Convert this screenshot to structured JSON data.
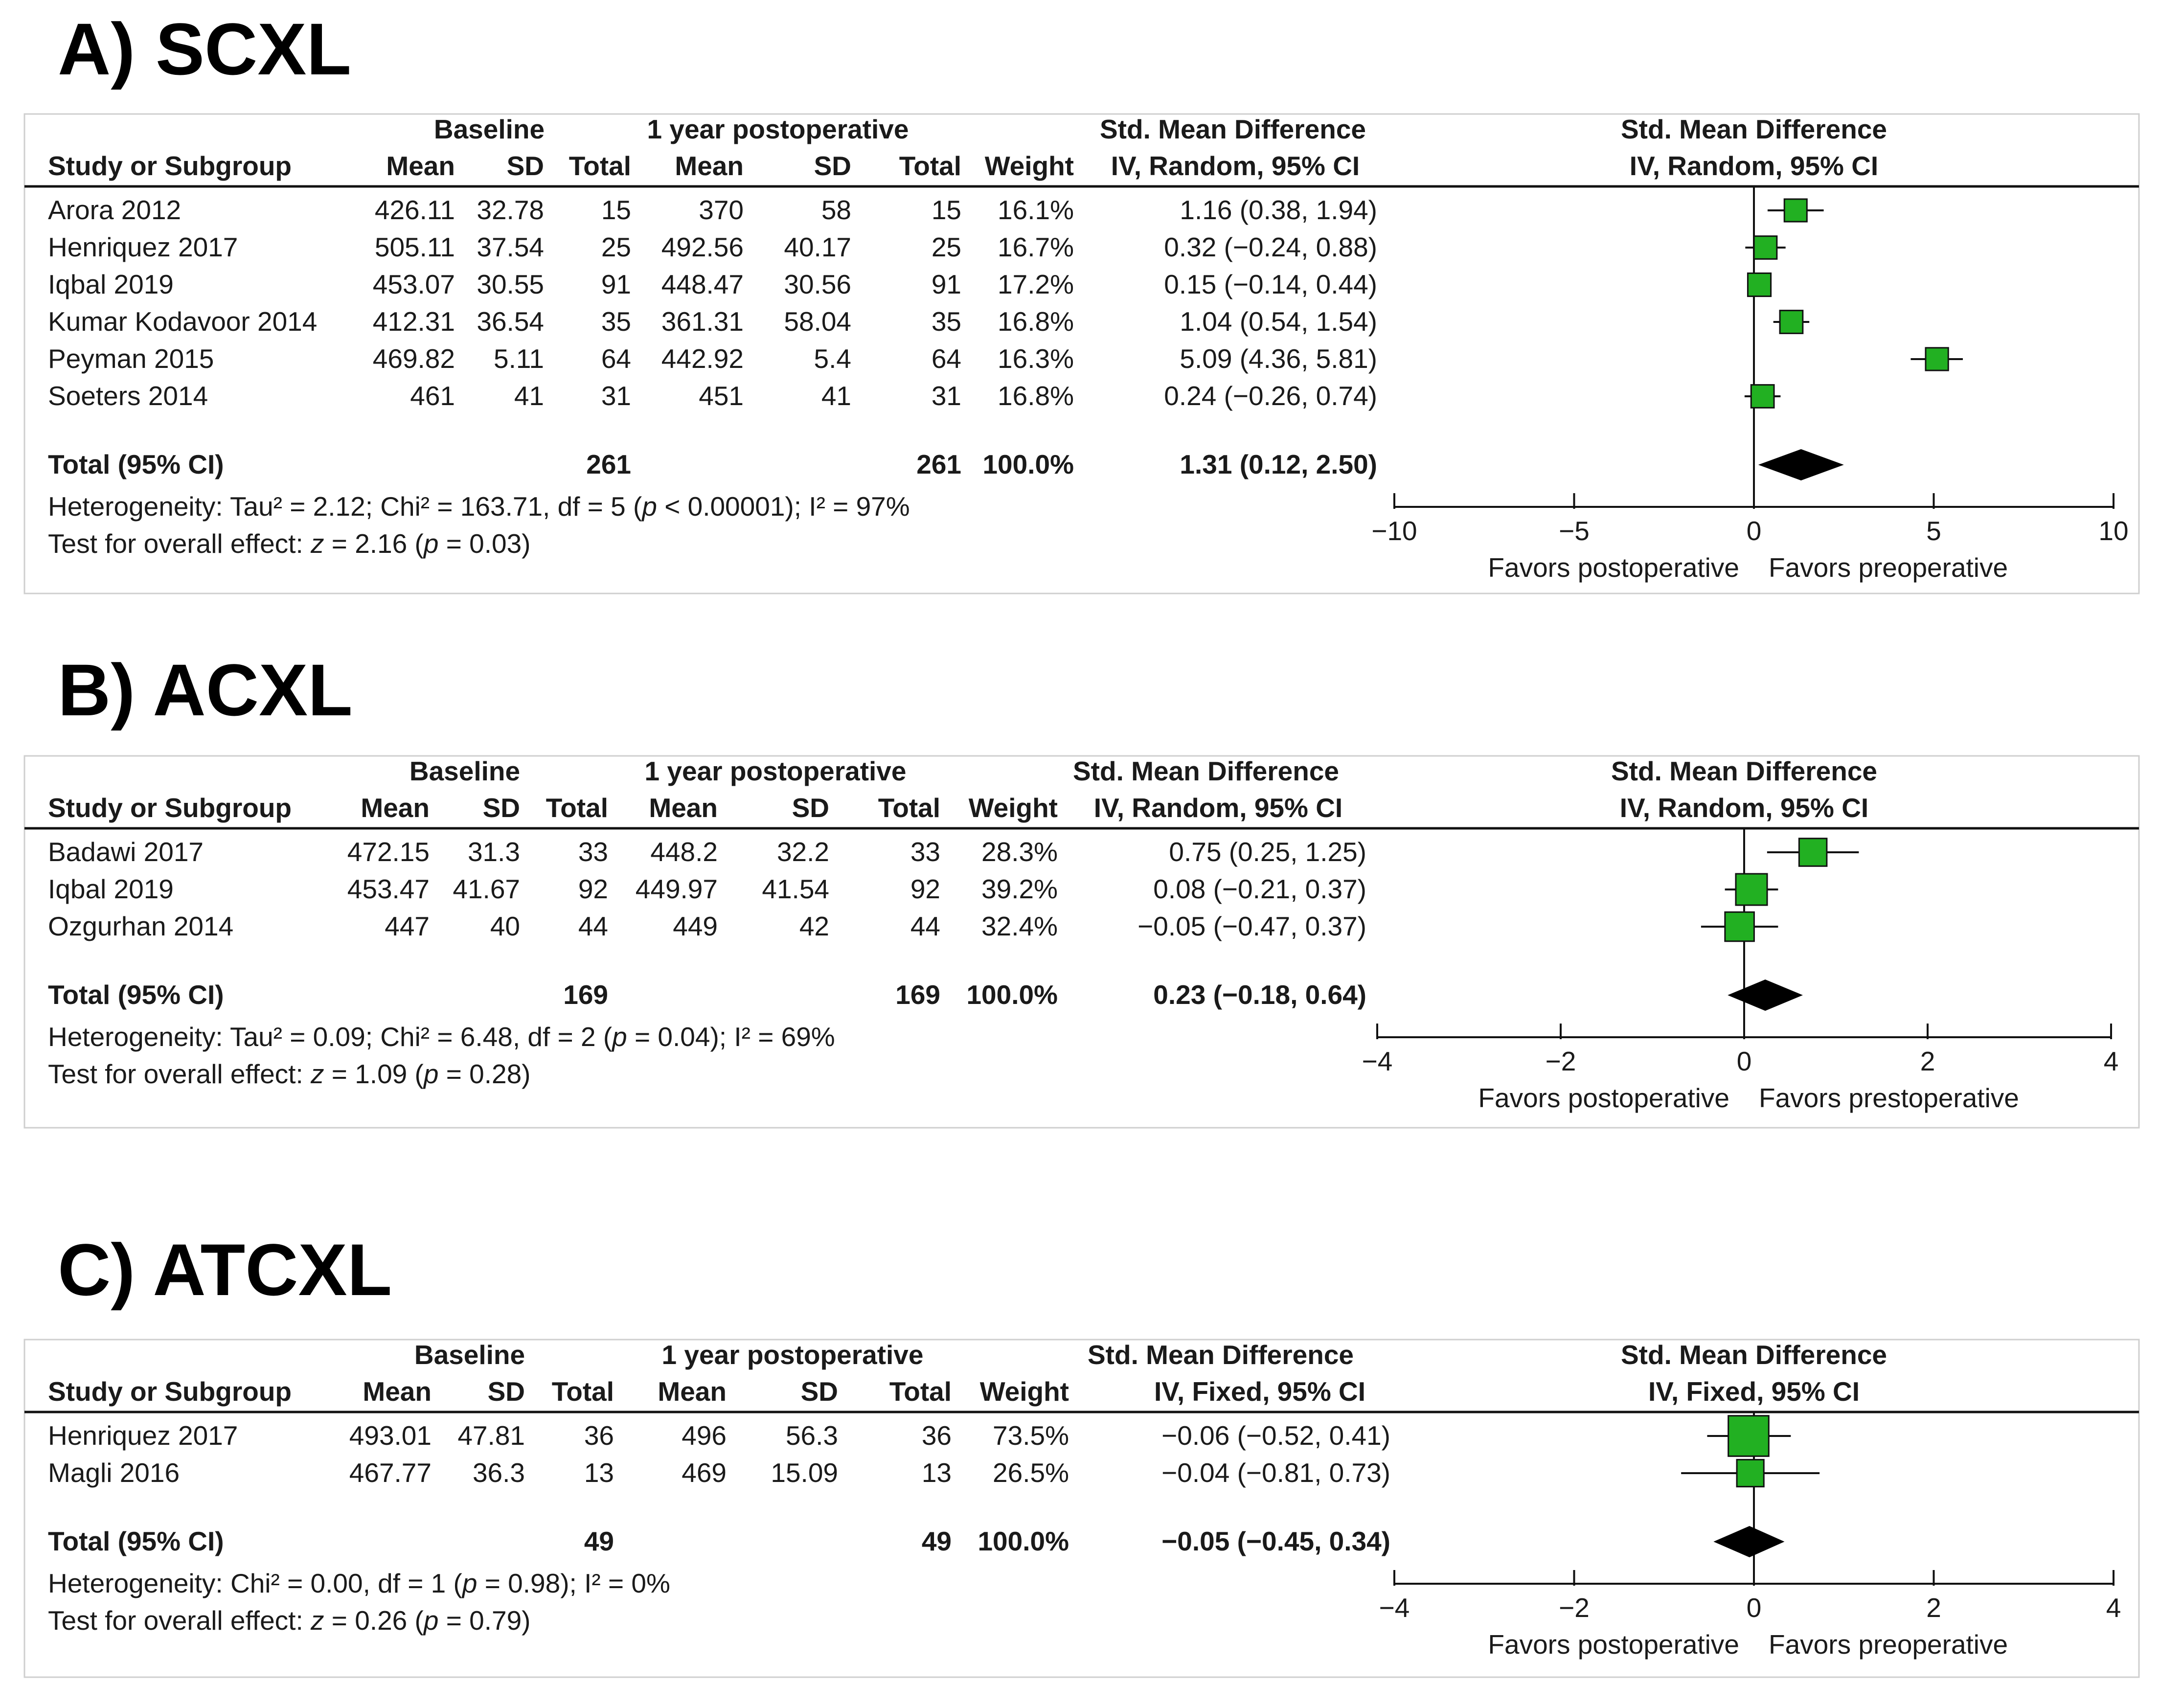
{
  "chart_data": [
    {
      "type": "forest",
      "title": "A) SCXL",
      "headers": {
        "group1": "Baseline",
        "group2": "1 year postoperative",
        "smd": "Std. Mean Difference",
        "method": "IV, Random, 95% CI",
        "study": "Study or Subgroup",
        "mean": "Mean",
        "sd": "SD",
        "total": "Total",
        "weight": "Weight"
      },
      "studies": [
        {
          "name": "Arora 2012",
          "mean1": "426.11",
          "sd1": "32.78",
          "n1": "15",
          "mean2": "370",
          "sd2": "58",
          "n2": "15",
          "weight": "16.1%",
          "ci_text": "1.16 (0.38, 1.94)",
          "est": 1.16,
          "lo": 0.38,
          "hi": 1.94,
          "w": 16.1
        },
        {
          "name": "Henriquez 2017",
          "mean1": "505.11",
          "sd1": "37.54",
          "n1": "25",
          "mean2": "492.56",
          "sd2": "40.17",
          "n2": "25",
          "weight": "16.7%",
          "ci_text": "0.32 (−0.24, 0.88)",
          "est": 0.32,
          "lo": -0.24,
          "hi": 0.88,
          "w": 16.7
        },
        {
          "name": "Iqbal 2019",
          "mean1": "453.07",
          "sd1": "30.55",
          "n1": "91",
          "mean2": "448.47",
          "sd2": "30.56",
          "n2": "91",
          "weight": "17.2%",
          "ci_text": "0.15 (−0.14, 0.44)",
          "est": 0.15,
          "lo": -0.14,
          "hi": 0.44,
          "w": 17.2
        },
        {
          "name": "Kumar Kodavoor 2014",
          "mean1": "412.31",
          "sd1": "36.54",
          "n1": "35",
          "mean2": "361.31",
          "sd2": "58.04",
          "n2": "35",
          "weight": "16.8%",
          "ci_text": "1.04 (0.54, 1.54)",
          "est": 1.04,
          "lo": 0.54,
          "hi": 1.54,
          "w": 16.8
        },
        {
          "name": "Peyman 2015",
          "mean1": "469.82",
          "sd1": "5.11",
          "n1": "64",
          "mean2": "442.92",
          "sd2": "5.4",
          "n2": "64",
          "weight": "16.3%",
          "ci_text": "5.09 (4.36, 5.81)",
          "est": 5.09,
          "lo": 4.36,
          "hi": 5.81,
          "w": 16.3
        },
        {
          "name": "Soeters 2014",
          "mean1": "461",
          "sd1": "41",
          "n1": "31",
          "mean2": "451",
          "sd2": "41",
          "n2": "31",
          "weight": "16.8%",
          "ci_text": "0.24 (−0.26, 0.74)",
          "est": 0.24,
          "lo": -0.26,
          "hi": 0.74,
          "w": 16.8
        }
      ],
      "total": {
        "label": "Total (95% CI)",
        "n1": "261",
        "n2": "261",
        "weight": "100.0%",
        "ci_text": "1.31 (0.12, 2.50)",
        "est": 1.31,
        "lo": 0.12,
        "hi": 2.5
      },
      "heterogeneity": {
        "prefix": "Heterogeneity: Tau² = 2.12; Chi² = 163.71, df = 5 (",
        "p": "p",
        "middle": " < 0.00001); I² = 97%"
      },
      "overall": {
        "prefix": "Test for overall effect: ",
        "z": "z",
        "middle": " = 2.16 (",
        "p": "p",
        "suffix": " = 0.03)"
      },
      "axis": {
        "min": -10,
        "max": 10,
        "ticks": [
          -10,
          -5,
          0,
          5,
          10
        ],
        "tick_labels": [
          "−10",
          "−5",
          "0",
          "5",
          "10"
        ]
      },
      "favors_left": "Favors postoperative",
      "favors_right": "Favors preoperative",
      "marker_color": "#22b022"
    },
    {
      "type": "forest",
      "title": "B) ACXL",
      "headers": {
        "group1": "Baseline",
        "group2": "1 year postoperative",
        "smd": "Std. Mean Difference",
        "method": "IV, Random, 95% CI",
        "study": "Study or Subgroup",
        "mean": "Mean",
        "sd": "SD",
        "total": "Total",
        "weight": "Weight"
      },
      "studies": [
        {
          "name": "Badawi 2017",
          "mean1": "472.15",
          "sd1": "31.3",
          "n1": "33",
          "mean2": "448.2",
          "sd2": "32.2",
          "n2": "33",
          "weight": "28.3%",
          "ci_text": "0.75 (0.25, 1.25)",
          "est": 0.75,
          "lo": 0.25,
          "hi": 1.25,
          "w": 28.3
        },
        {
          "name": "Iqbal 2019",
          "mean1": "453.47",
          "sd1": "41.67",
          "n1": "92",
          "mean2": "449.97",
          "sd2": "41.54",
          "n2": "92",
          "weight": "39.2%",
          "ci_text": "0.08 (−0.21, 0.37)",
          "est": 0.08,
          "lo": -0.21,
          "hi": 0.37,
          "w": 39.2
        },
        {
          "name": "Ozgurhan 2014",
          "mean1": "447",
          "sd1": "40",
          "n1": "44",
          "mean2": "449",
          "sd2": "42",
          "n2": "44",
          "weight": "32.4%",
          "ci_text": "−0.05 (−0.47, 0.37)",
          "est": -0.05,
          "lo": -0.47,
          "hi": 0.37,
          "w": 32.4
        }
      ],
      "total": {
        "label": "Total (95% CI)",
        "n1": "169",
        "n2": "169",
        "weight": "100.0%",
        "ci_text": "0.23 (−0.18, 0.64)",
        "est": 0.23,
        "lo": -0.18,
        "hi": 0.64
      },
      "heterogeneity": {
        "prefix": "Heterogeneity: Tau² = 0.09; Chi² = 6.48, df = 2 (",
        "p": "p",
        "middle": " = 0.04); I² = 69%"
      },
      "overall": {
        "prefix": "Test for overall effect: ",
        "z": "z",
        "middle": " = 1.09 (",
        "p": "p",
        "suffix": " = 0.28)"
      },
      "axis": {
        "min": -4,
        "max": 4,
        "ticks": [
          -4,
          -2,
          0,
          2,
          4
        ],
        "tick_labels": [
          "−4",
          "−2",
          "0",
          "2",
          "4"
        ]
      },
      "favors_left": "Favors postoperative",
      "favors_right": "Favors prestoperative",
      "marker_color": "#22b022"
    },
    {
      "type": "forest",
      "title": "C) ATCXL",
      "headers": {
        "group1": "Baseline",
        "group2": "1 year postoperative",
        "smd": "Std. Mean Difference",
        "method": "IV, Fixed, 95% CI",
        "study": "Study or Subgroup",
        "mean": "Mean",
        "sd": "SD",
        "total": "Total",
        "weight": "Weight"
      },
      "studies": [
        {
          "name": "Henriquez 2017",
          "mean1": "493.01",
          "sd1": "47.81",
          "n1": "36",
          "mean2": "496",
          "sd2": "56.3",
          "n2": "36",
          "weight": "73.5%",
          "ci_text": "−0.06 (−0.52, 0.41)",
          "est": -0.06,
          "lo": -0.52,
          "hi": 0.41,
          "w": 73.5
        },
        {
          "name": "Magli 2016",
          "mean1": "467.77",
          "sd1": "36.3",
          "n1": "13",
          "mean2": "469",
          "sd2": "15.09",
          "n2": "13",
          "weight": "26.5%",
          "ci_text": "−0.04 (−0.81, 0.73)",
          "est": -0.04,
          "lo": -0.81,
          "hi": 0.73,
          "w": 26.5
        }
      ],
      "total": {
        "label": "Total (95% CI)",
        "n1": "49",
        "n2": "49",
        "weight": "100.0%",
        "ci_text": "−0.05 (−0.45, 0.34)",
        "est": -0.05,
        "lo": -0.45,
        "hi": 0.34
      },
      "heterogeneity": {
        "prefix": "Heterogeneity: Chi² = 0.00, df = 1 (",
        "p": "p",
        "middle": " = 0.98); I² = 0%"
      },
      "overall": {
        "prefix": "Test for overall effect: ",
        "z": "z",
        "middle": " = 0.26 (",
        "p": "p",
        "suffix": " = 0.79)"
      },
      "axis": {
        "min": -4,
        "max": 4,
        "ticks": [
          -4,
          -2,
          0,
          2,
          4
        ],
        "tick_labels": [
          "−4",
          "−2",
          "0",
          "2",
          "4"
        ]
      },
      "favors_left": "Favors postoperative",
      "favors_right": "Favors preoperative",
      "marker_color": "#22b022"
    }
  ]
}
